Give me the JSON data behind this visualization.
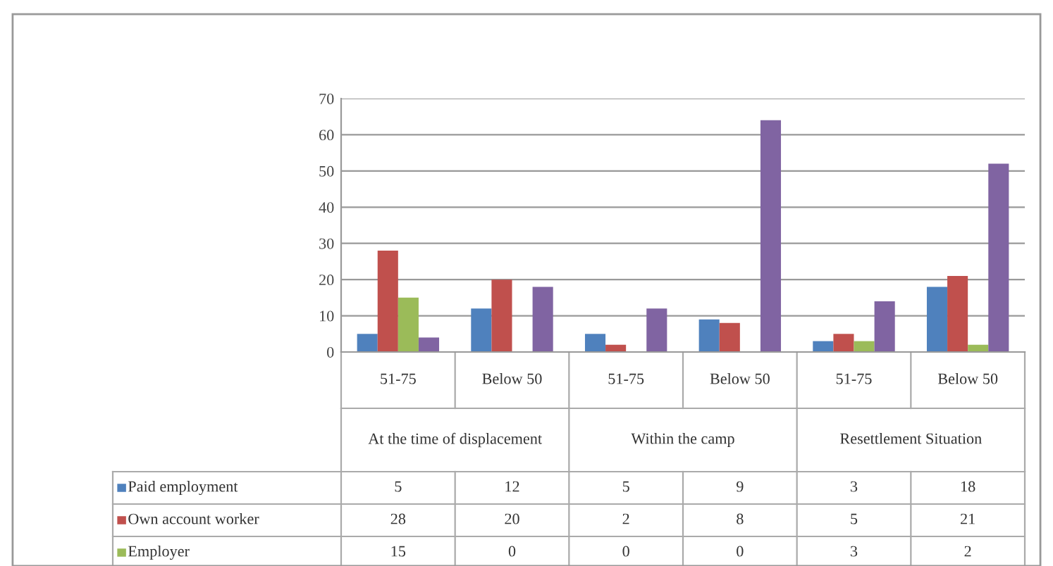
{
  "chart_data": {
    "type": "bar",
    "categories": [
      "51-75",
      "Below 50",
      "51-75",
      "Below 50",
      "51-75",
      "Below 50"
    ],
    "annotations": [
      "At the time of displacement",
      "Within the camp",
      "Resettlement Situation"
    ],
    "series": [
      {
        "name": "Paid employment",
        "color": "#4f81bd",
        "values": [
          5,
          12,
          5,
          9,
          3,
          18
        ],
        "value_labels": [
          "5",
          "12",
          "5",
          "9",
          "3",
          "18"
        ]
      },
      {
        "name": "Own account worker",
        "color": "#c0504d",
        "values": [
          28,
          20,
          2,
          8,
          5,
          21
        ],
        "value_labels": [
          "28",
          "20",
          "2",
          "8",
          "5",
          "21"
        ]
      },
      {
        "name": "Employer",
        "color": "#9bbb59",
        "values": [
          15,
          0,
          0,
          0,
          3,
          2
        ],
        "value_labels": [
          "15",
          "0",
          "0",
          "0",
          "3",
          "2"
        ]
      },
      {
        "color": "#8064a2",
        "values": [
          4,
          18,
          12,
          64,
          14,
          52
        ]
      }
    ],
    "ylim": [
      0,
      70
    ],
    "yticks": [
      0,
      10,
      20,
      30,
      40,
      50,
      60,
      70
    ],
    "grid": "y",
    "legend": "bottom"
  }
}
